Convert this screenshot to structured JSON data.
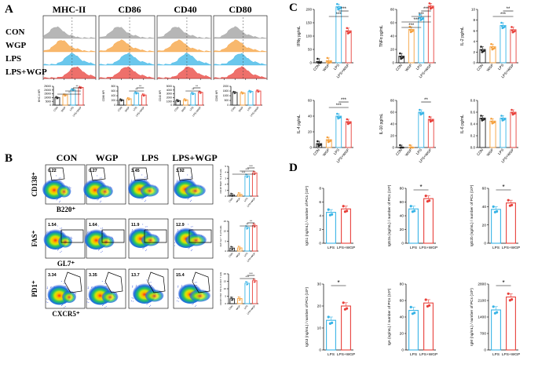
{
  "figure": {
    "panel_labels": [
      "A",
      "B",
      "C",
      "D"
    ],
    "colors": {
      "con": "#9e9e9e",
      "wgp": "#f5a03c",
      "lps": "#38b4e6",
      "lps_wgp": "#e8403a",
      "con_bar": "#222222",
      "accent_line": "#000000"
    }
  },
  "panel_a": {
    "markers": [
      "MHC-II",
      "CD86",
      "CD40",
      "CD80"
    ],
    "groups": [
      "CON",
      "WGP",
      "LPS",
      "LPS+WGP"
    ],
    "x_ticks": [
      "CON",
      "WGP",
      "LPS",
      "LPS+WGP"
    ],
    "charts": [
      {
        "ylabel": "MHC-II MFI",
        "ticks": [
          "25000",
          "20000",
          "15000",
          "10000",
          "5000",
          "0"
        ],
        "values": [
          10000,
          13500,
          20500,
          23500
        ],
        "sig": [
          "**",
          "**",
          "*"
        ]
      },
      {
        "ylabel": "CD86 MFI",
        "ticks": [
          "800",
          "600",
          "400",
          "200",
          "0"
        ],
        "values": [
          220,
          270,
          520,
          430
        ],
        "sig": [
          "**",
          "**"
        ]
      },
      {
        "ylabel": "CD40 MFI",
        "ticks": [
          "5000",
          "4000",
          "3000",
          "2000",
          "1000",
          "0"
        ],
        "values": [
          1200,
          1400,
          3100,
          3400
        ],
        "sig": [
          "**",
          "**"
        ]
      },
      {
        "ylabel": "CD80 MFI",
        "ticks": [
          "2000",
          "1500",
          "1000",
          "500",
          "0"
        ],
        "values": [
          1350,
          1300,
          1450,
          1500
        ],
        "sig": []
      }
    ]
  },
  "panel_b": {
    "groups": [
      "CON",
      "WGP",
      "LPS",
      "LPS+WGP"
    ],
    "rows": [
      {
        "y_axis": "CD138⁺",
        "x_axis": "B220⁺",
        "percents": [
          "0.22",
          "0.27",
          "3.45",
          "3.92"
        ],
        "side_ylabel": "CD138⁺B220⁺ % of B cells",
        "values": [
          0.2,
          0.3,
          3.4,
          3.9
        ],
        "sig": [
          "***",
          "***",
          "***"
        ]
      },
      {
        "y_axis": "FAS⁺",
        "x_axis": "GL7⁺",
        "percents": [
          "1.54",
          "1.64",
          "11.9",
          "12.9"
        ],
        "side_ylabel": "FAS⁺GL7⁺ % of B cells",
        "values": [
          1.5,
          1.6,
          11.9,
          12.9
        ],
        "sig": [
          "**",
          "**"
        ]
      },
      {
        "y_axis": "PD1⁺",
        "x_axis": "CXCR5⁺",
        "percents": [
          "3.34",
          "3.35",
          "13.7",
          "15.4"
        ],
        "side_ylabel": "CXCR5⁺PD1⁺ Tfh % of CD4⁺ T cells",
        "values": [
          3.3,
          3.4,
          13.7,
          15.4
        ],
        "sig": [
          "***",
          "***"
        ]
      }
    ],
    "x_ticks": [
      "CON",
      "WGP",
      "LPS",
      "LPS+WGP"
    ]
  },
  "panel_c": {
    "x_ticks": [
      "CON",
      "WGP",
      "LPS",
      "LPS+WGP"
    ],
    "charts": [
      {
        "ylabel": "IFNγ pg/mL",
        "ticks": [
          "200",
          "150",
          "100",
          "50",
          "0"
        ],
        "values": [
          5,
          8,
          210,
          120
        ],
        "sig": [
          "***",
          "***"
        ]
      },
      {
        "ylabel": "TNFα pg/mL",
        "ticks": [
          "80",
          "60",
          "40",
          "20",
          "0"
        ],
        "values": [
          10,
          50,
          68,
          85
        ],
        "sig": [
          "***",
          "***",
          "***",
          "***"
        ]
      },
      {
        "ylabel": "IL-2 pg/mL",
        "ticks": [
          "10",
          "8",
          "6",
          "4",
          "2",
          "0"
        ],
        "values": [
          2.5,
          3,
          7,
          6.2
        ],
        "sig": [
          "**",
          "***"
        ]
      },
      {
        "ylabel": "IL-4 pg/mL",
        "ticks": [
          "60",
          "40",
          "20",
          "0"
        ],
        "values": [
          5,
          10,
          40,
          33
        ],
        "sig": [
          "***",
          "***"
        ]
      },
      {
        "ylabel": "IL-10 pg/mL",
        "ticks": [
          "80",
          "60",
          "40",
          "20",
          "0"
        ],
        "values": [
          0,
          0,
          60,
          48
        ],
        "sig": [
          "**"
        ]
      },
      {
        "ylabel": "IL-6 pg/mL",
        "ticks": [
          "0.8",
          "0.6",
          "0.4",
          "0.2",
          "0.0"
        ],
        "values": [
          0.5,
          0.45,
          0.5,
          0.6
        ],
        "sig": []
      }
    ]
  },
  "panel_d": {
    "x_ticks": [
      "LPS",
      "LPS+WGP"
    ],
    "charts": [
      {
        "ylabel": "IgG1 (ng/mL) / number of PCs (10⁵)",
        "ticks": [
          "8",
          "6",
          "4",
          "2",
          "0"
        ],
        "values": [
          4.5,
          5.0
        ],
        "sig": ""
      },
      {
        "ylabel": "IgG2a (ng/mL) / number of PCs (10⁵)",
        "ticks": [
          "80",
          "60",
          "40",
          "20",
          "0"
        ],
        "values": [
          50,
          65
        ],
        "sig": "*"
      },
      {
        "ylabel": "IgG2b (ng/mL) / number of PCs (10⁵)",
        "ticks": [
          "60",
          "40",
          "20",
          "0"
        ],
        "values": [
          37,
          44
        ],
        "sig": "*"
      },
      {
        "ylabel": "IgG3 (ng/mL) / number of PCs (10⁵)",
        "ticks": [
          "30",
          "20",
          "10",
          "0"
        ],
        "values": [
          13.5,
          20
        ],
        "sig": "*"
      },
      {
        "ylabel": "IgA (ng/mL) / number of PCs (10⁵)",
        "ticks": [
          "80",
          "60",
          "40",
          "20",
          "0"
        ],
        "values": [
          48,
          57
        ],
        "sig": ""
      },
      {
        "ylabel": "IgM (ng/mL) / number of PCs (10⁵)",
        "ticks": [
          "2800",
          "2100",
          "1400",
          "700",
          "0"
        ],
        "values": [
          1700,
          2250
        ],
        "sig": "*"
      }
    ]
  }
}
